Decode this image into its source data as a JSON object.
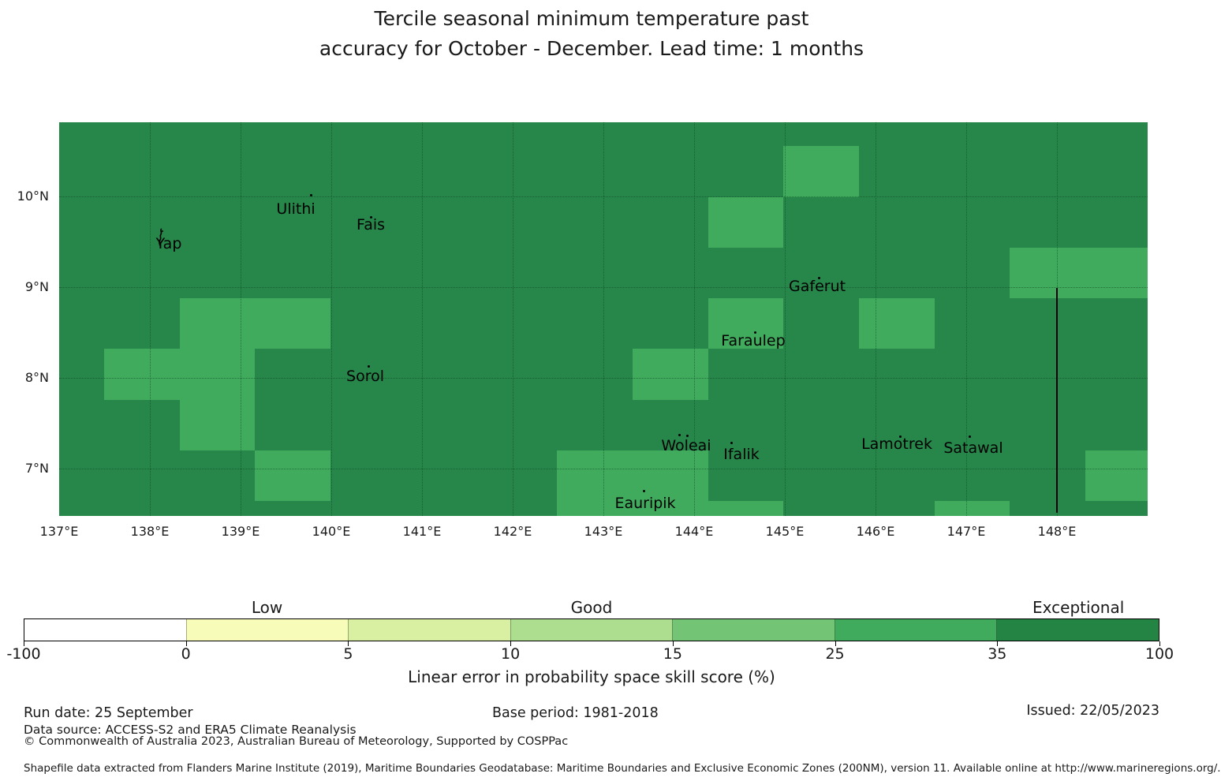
{
  "title": {
    "line1": "Tercile seasonal minimum temperature past",
    "line2": "accuracy for October - December. Lead time: 1 months"
  },
  "chart_data": {
    "type": "heatmap",
    "title": "Tercile seasonal minimum temperature past accuracy for October - December. Lead time: 1 months",
    "projection": {
      "lon_min": 137.0,
      "lon_max": 149.0,
      "lat_min": 6.478,
      "lat_max": 10.817
    },
    "background_bin": {
      "range": "35-100",
      "color": "#278649"
    },
    "x_ticks": [
      {
        "lon": 137,
        "label": "137°E"
      },
      {
        "lon": 138,
        "label": "138°E"
      },
      {
        "lon": 139,
        "label": "139°E"
      },
      {
        "lon": 140,
        "label": "140°E"
      },
      {
        "lon": 141,
        "label": "141°E"
      },
      {
        "lon": 142,
        "label": "142°E"
      },
      {
        "lon": 143,
        "label": "143°E"
      },
      {
        "lon": 144,
        "label": "144°E"
      },
      {
        "lon": 145,
        "label": "145°E"
      },
      {
        "lon": 146,
        "label": "146°E"
      },
      {
        "lon": 147,
        "label": "147°E"
      },
      {
        "lon": 148,
        "label": "148°E"
      }
    ],
    "y_ticks": [
      {
        "lat": 10,
        "label": "10°N"
      },
      {
        "lat": 9,
        "label": "9°N"
      },
      {
        "lat": 8,
        "label": "8°N"
      },
      {
        "lat": 7,
        "label": "7°N"
      }
    ],
    "graticule": {
      "lons": [
        138,
        139,
        140,
        141,
        142,
        143,
        144,
        145,
        146,
        147,
        148
      ],
      "lats": [
        7,
        8,
        9,
        10
      ]
    },
    "cells": [
      {
        "lon0": 144.985,
        "lon1": 145.817,
        "lat_top": 10.552,
        "lat_bottom": 9.994,
        "bin": "25-35",
        "color": "#41ab5d"
      },
      {
        "lon0": 144.153,
        "lon1": 144.985,
        "lat_top": 9.994,
        "lat_bottom": 9.435,
        "bin": "25-35",
        "color": "#41ab5d"
      },
      {
        "lon0": 147.482,
        "lon1": 149.0,
        "lat_top": 9.435,
        "lat_bottom": 8.877,
        "bin": "25-35",
        "color": "#41ab5d"
      },
      {
        "lon0": 138.328,
        "lon1": 139.992,
        "lat_top": 8.877,
        "lat_bottom": 8.319,
        "bin": "25-35",
        "color": "#41ab5d"
      },
      {
        "lon0": 144.153,
        "lon1": 144.985,
        "lat_top": 8.877,
        "lat_bottom": 8.319,
        "bin": "25-35",
        "color": "#41ab5d"
      },
      {
        "lon0": 145.817,
        "lon1": 146.65,
        "lat_top": 8.877,
        "lat_bottom": 8.319,
        "bin": "25-35",
        "color": "#41ab5d"
      },
      {
        "lon0": 137.496,
        "lon1": 138.328,
        "lat_top": 8.319,
        "lat_bottom": 7.76,
        "bin": "25-35",
        "color": "#41ab5d"
      },
      {
        "lon0": 138.328,
        "lon1": 139.16,
        "lat_top": 8.319,
        "lat_bottom": 7.202,
        "bin": "25-35",
        "color": "#41ab5d"
      },
      {
        "lon0": 143.321,
        "lon1": 144.153,
        "lat_top": 8.319,
        "lat_bottom": 7.76,
        "bin": "25-35",
        "color": "#41ab5d"
      },
      {
        "lon0": 139.16,
        "lon1": 139.992,
        "lat_top": 7.202,
        "lat_bottom": 6.644,
        "bin": "25-35",
        "color": "#41ab5d"
      },
      {
        "lon0": 142.489,
        "lon1": 144.153,
        "lat_top": 7.202,
        "lat_bottom": 6.478,
        "bin": "25-35",
        "color": "#41ab5d"
      },
      {
        "lon0": 148.314,
        "lon1": 149.0,
        "lat_top": 7.202,
        "lat_bottom": 6.644,
        "bin": "25-35",
        "color": "#41ab5d"
      },
      {
        "lon0": 144.153,
        "lon1": 144.985,
        "lat_top": 6.644,
        "lat_bottom": 6.478,
        "bin": "25-35",
        "color": "#41ab5d"
      },
      {
        "lon0": 146.65,
        "lon1": 147.482,
        "lat_top": 6.644,
        "lat_bottom": 6.478,
        "bin": "25-35",
        "color": "#41ab5d"
      }
    ],
    "boundary_line": {
      "lon": 148.0,
      "lat_top": 8.99,
      "lat_bottom": 6.51,
      "color": "#000000"
    },
    "islands": [
      {
        "name": "yap",
        "label": "Yap",
        "label_lon": 138.209,
        "label_lat": 9.478,
        "dots": [],
        "shape": "yap-outline"
      },
      {
        "name": "ulithi",
        "label": "Ulithi",
        "label_lon": 139.609,
        "label_lat": 9.861,
        "dots": [
          {
            "lon": 139.774,
            "lat": 10.009
          }
        ]
      },
      {
        "name": "fais",
        "label": "Fais",
        "label_lon": 140.435,
        "label_lat": 9.687,
        "dots": [
          {
            "lon": 140.435,
            "lat": 9.765
          }
        ]
      },
      {
        "name": "sorol",
        "label": "Sorol",
        "label_lon": 140.374,
        "label_lat": 8.017,
        "dots": [
          {
            "lon": 140.409,
            "lat": 8.122
          }
        ]
      },
      {
        "name": "gaferut",
        "label": "Gaferut",
        "label_lon": 145.357,
        "label_lat": 9.009,
        "dots": [
          {
            "lon": 145.374,
            "lat": 9.104
          }
        ]
      },
      {
        "name": "faraulep",
        "label": "Faraulep",
        "label_lon": 144.652,
        "label_lat": 8.409,
        "dots": [
          {
            "lon": 144.67,
            "lat": 8.496
          }
        ]
      },
      {
        "name": "woleai",
        "label": "Woleai",
        "label_lon": 143.913,
        "label_lat": 7.252,
        "dots": [
          {
            "lon": 143.835,
            "lat": 7.365
          },
          {
            "lon": 143.922,
            "lat": 7.357
          }
        ]
      },
      {
        "name": "ifalik",
        "label": "Ifalik",
        "label_lon": 144.522,
        "label_lat": 7.157,
        "dots": [
          {
            "lon": 144.417,
            "lat": 7.278
          }
        ]
      },
      {
        "name": "lamotrek",
        "label": "Lamotrek",
        "label_lon": 146.235,
        "label_lat": 7.27,
        "dots": [
          {
            "lon": 146.27,
            "lat": 7.348
          }
        ]
      },
      {
        "name": "satawal",
        "label": "Satawal",
        "label_lon": 147.078,
        "label_lat": 7.226,
        "dots": [
          {
            "lon": 147.043,
            "lat": 7.348
          }
        ]
      },
      {
        "name": "eauripik",
        "label": "Eauripik",
        "label_lon": 143.461,
        "label_lat": 6.617,
        "dots": [
          {
            "lon": 143.452,
            "lat": 6.748
          }
        ]
      }
    ]
  },
  "colorbar": {
    "segments": [
      {
        "from": "-100",
        "to": "0",
        "color": "#ffffff"
      },
      {
        "from": "0",
        "to": "5",
        "color": "#f7fcb9"
      },
      {
        "from": "5",
        "to": "10",
        "color": "#d9f0a3"
      },
      {
        "from": "10",
        "to": "15",
        "color": "#addd8e"
      },
      {
        "from": "15",
        "to": "25",
        "color": "#74c476"
      },
      {
        "from": "25",
        "to": "35",
        "color": "#41ab5d"
      },
      {
        "from": "35",
        "to": "100",
        "color": "#238443"
      }
    ],
    "tick_labels": [
      "-100",
      "0",
      "5",
      "10",
      "15",
      "25",
      "35",
      "100"
    ],
    "tier_labels": [
      {
        "text": "Low",
        "segment": 1
      },
      {
        "text": "Good",
        "segment": 3
      },
      {
        "text": "Exceptional",
        "segment": 6
      }
    ],
    "xlabel": "Linear error in probability space skill score (%)"
  },
  "footer": {
    "run_date": "Run date: 25 September",
    "base_period": "Base period: 1981-2018",
    "issued": "Issued: 22/05/2023",
    "data_source": "Data source: ACCESS-S2 and ERA5 Climate Reanalysis",
    "copyright": "© Commonwealth of Australia 2023, Australian Bureau of Meteorology, Supported by COSPPac",
    "shapefile": "Shapefile data extracted from Flanders Marine Institute (2019), Maritime Boundaries Geodatabase: Maritime Boundaries and Exclusive Economic Zones (200NM), version 11. Available online at http://www.marineregions.org/."
  }
}
